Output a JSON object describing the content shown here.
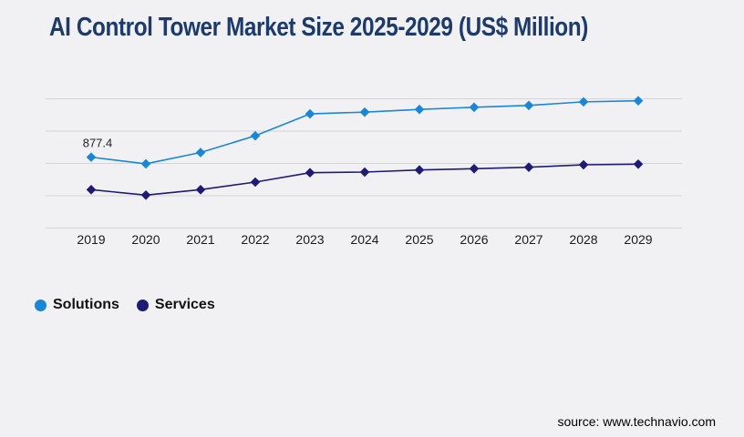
{
  "title": "AI Control Tower Market Size 2025-2029 (US$ Million)",
  "source": "source: www.technavio.com",
  "colors": {
    "background": "#f1f1f3",
    "gridline": "#d5d5d9",
    "title": "#1c3a6a",
    "axis_text": "#1a1a1a",
    "annotation_text": "#222222"
  },
  "chart_data": {
    "type": "line",
    "title": "AI Control Tower Market Size 2025-2029 (US$ Million)",
    "categories": [
      "2019",
      "2020",
      "2021",
      "2022",
      "2023",
      "2024",
      "2025",
      "2026",
      "2027",
      "2028",
      "2029"
    ],
    "series": [
      {
        "name": "Solutions",
        "color": "#1a86d6",
        "marker": "diamond",
        "values": [
          877.4,
          795,
          935,
          1142,
          1413,
          1435,
          1468,
          1495,
          1518,
          1562,
          1575
        ]
      },
      {
        "name": "Services",
        "color": "#1e1b75",
        "marker": "diamond",
        "values": [
          475,
          408,
          475,
          569,
          685,
          693,
          719,
          735,
          753,
          783,
          791
        ]
      }
    ],
    "xlabel": "",
    "ylabel": "",
    "ylim": [
      0,
      1600
    ],
    "grid_step": 400,
    "grid": true,
    "y_axis_labels_visible": false,
    "legend_position": "bottom-left",
    "annotations": [
      {
        "series": "Solutions",
        "category": "2019",
        "text": "877.4"
      }
    ]
  }
}
